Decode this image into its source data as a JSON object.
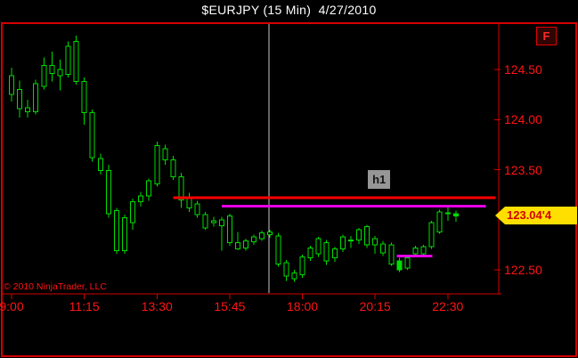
{
  "window": {
    "title": "$EURJPY (15 Min)  4/27/2010"
  },
  "watermark": "© 2010 NinjaTrader, LLC",
  "badges": {
    "f_label": "F",
    "indicator_label": "h1"
  },
  "price_tag": {
    "label": "123.04'4",
    "value": 123.044
  },
  "colors": {
    "background": "#000000",
    "frame": "#d40000",
    "axis_text": "#ff1414",
    "candle": "#00dd00",
    "candle_fill_hollow": "#000000",
    "red_line": "#ff0000",
    "magenta_line": "#e800e8",
    "session_line": "#c8c8c8",
    "tag_bg": "#ffdf00",
    "tag_text": "#d40000",
    "title_text": "#ffffff",
    "h1_bg": "#969696",
    "h1_text": "#141414"
  },
  "chart_data": {
    "type": "candlestick",
    "title": "$EURJPY (15 Min)  4/27/2010",
    "symbol": "$EURJPY",
    "interval": "15 Min",
    "date": "4/27/2010",
    "grid": false,
    "y_axis": {
      "side": "right",
      "tick_prices": [
        124.5,
        124.0,
        123.5,
        122.5
      ],
      "visible_range": [
        122.31,
        124.96
      ]
    },
    "x_axis": {
      "side": "bottom",
      "tick_labels": [
        "9:00",
        "11:15",
        "13:30",
        "15:45",
        "18:00",
        "20:15",
        "22:30"
      ],
      "tick_bars": [
        0,
        9,
        18,
        27,
        36,
        45,
        54
      ],
      "start_time": "9:00",
      "bar_interval_min": 15
    },
    "last_price": 123.044,
    "candles_format": [
      "open",
      "high",
      "low",
      "close",
      "solid_flag"
    ],
    "candles": [
      [
        124.44,
        124.52,
        124.18,
        124.25
      ],
      [
        124.3,
        124.39,
        124.02,
        124.11
      ],
      [
        124.12,
        124.2,
        124.02,
        124.08
      ],
      [
        124.08,
        124.4,
        124.05,
        124.36
      ],
      [
        124.33,
        124.62,
        124.3,
        124.54
      ],
      [
        124.54,
        124.68,
        124.38,
        124.46
      ],
      [
        124.44,
        124.6,
        124.29,
        124.5
      ],
      [
        124.45,
        124.78,
        124.42,
        124.73
      ],
      [
        124.78,
        124.84,
        124.35,
        124.38
      ],
      [
        124.38,
        124.42,
        123.95,
        124.07
      ],
      [
        124.07,
        124.1,
        123.58,
        123.62
      ],
      [
        123.61,
        123.66,
        123.45,
        123.49
      ],
      [
        123.49,
        123.55,
        123.02,
        123.06
      ],
      [
        123.09,
        123.12,
        122.66,
        122.69
      ],
      [
        122.69,
        123.05,
        122.66,
        123.02
      ],
      [
        122.97,
        123.21,
        122.9,
        123.18
      ],
      [
        123.18,
        123.28,
        123.13,
        123.24
      ],
      [
        123.24,
        123.41,
        123.19,
        123.39
      ],
      [
        123.36,
        123.78,
        123.33,
        123.74
      ],
      [
        123.6,
        123.75,
        123.55,
        123.71
      ],
      [
        123.6,
        123.64,
        123.4,
        123.43
      ],
      [
        123.43,
        123.47,
        123.12,
        123.2
      ],
      [
        123.21,
        123.27,
        123.08,
        123.12
      ],
      [
        123.16,
        123.19,
        123.02,
        123.05
      ],
      [
        123.05,
        123.08,
        122.9,
        122.92
      ],
      [
        122.99,
        123.03,
        122.93,
        122.97
      ],
      [
        123.0,
        123.03,
        122.69,
        122.94
      ],
      [
        123.04,
        123.06,
        122.74,
        122.77
      ],
      [
        122.77,
        122.88,
        122.7,
        122.71
      ],
      [
        122.72,
        122.81,
        122.69,
        122.79
      ],
      [
        122.78,
        122.85,
        122.75,
        122.83
      ],
      [
        122.81,
        122.89,
        122.79,
        122.87
      ],
      [
        122.85,
        122.9,
        122.82,
        122.88
      ],
      [
        122.84,
        122.87,
        122.53,
        122.56
      ],
      [
        122.57,
        122.6,
        122.39,
        122.44
      ],
      [
        122.47,
        122.5,
        122.38,
        122.41
      ],
      [
        122.45,
        122.65,
        122.42,
        122.63
      ],
      [
        122.62,
        122.74,
        122.59,
        122.72
      ],
      [
        122.66,
        122.83,
        122.63,
        122.81
      ],
      [
        122.77,
        122.8,
        122.55,
        122.59
      ],
      [
        122.62,
        122.73,
        122.58,
        122.71
      ],
      [
        122.71,
        122.85,
        122.68,
        122.83
      ],
      [
        122.8,
        122.84,
        122.72,
        122.8
      ],
      [
        122.8,
        122.92,
        122.76,
        122.9
      ],
      [
        122.93,
        122.95,
        122.72,
        122.75
      ],
      [
        122.75,
        122.84,
        122.66,
        122.81
      ],
      [
        122.76,
        122.79,
        122.64,
        122.67
      ],
      [
        122.75,
        122.77,
        122.54,
        122.56
      ],
      [
        122.59,
        122.62,
        122.48,
        122.5,
        1
      ],
      [
        122.52,
        122.64,
        122.5,
        122.62
      ],
      [
        122.66,
        122.74,
        122.64,
        122.72
      ],
      [
        122.66,
        122.75,
        122.64,
        122.73
      ],
      [
        122.73,
        122.99,
        122.71,
        122.97
      ],
      [
        122.88,
        123.1,
        122.86,
        123.08
      ],
      [
        123.07,
        123.13,
        122.99,
        123.07
      ],
      [
        123.06,
        123.09,
        122.98,
        123.04,
        1
      ]
    ],
    "annotations": {
      "red_horizontal_line": {
        "price": 123.22,
        "start_bar": 20.0,
        "end_bar": 59.9
      },
      "magenta_horizontal_line": {
        "price": 123.135,
        "start_bar": 26.0,
        "end_bar": 58.7
      },
      "magenta_short_line": {
        "price": 122.64,
        "start_bar": 47.7,
        "end_bar": 52.1
      },
      "session_break_line": {
        "bar": 31.86
      },
      "h1_text_object": {
        "label": "h1",
        "bar": 45.5,
        "price": 123.405
      }
    }
  }
}
